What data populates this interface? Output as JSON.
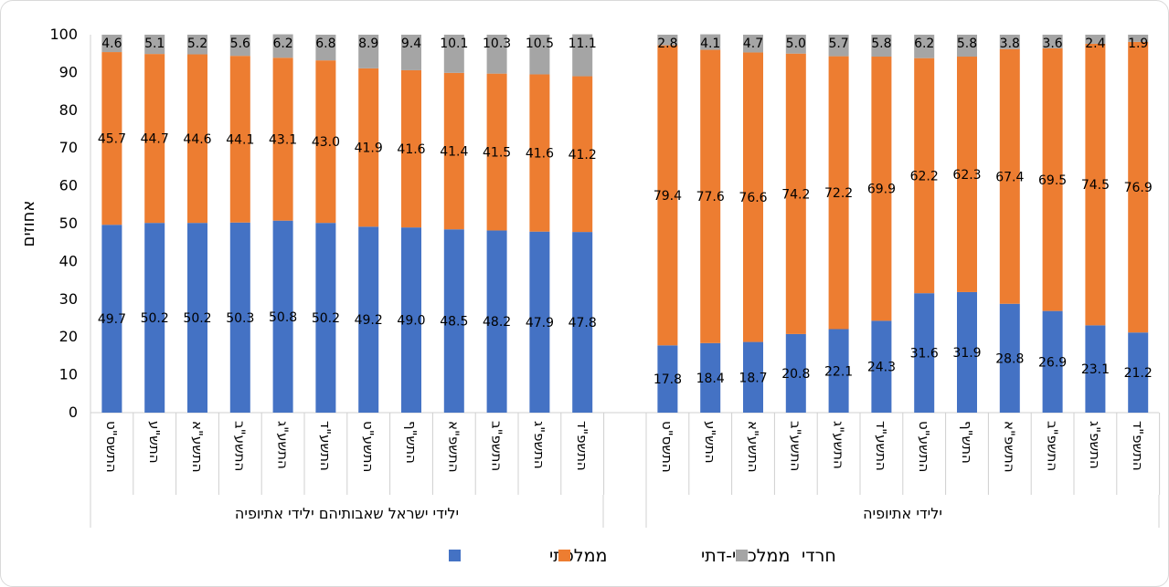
{
  "chart_data": {
    "type": "bar",
    "stacked": true,
    "ylabel": "אחוזים",
    "ylim": [
      0,
      100
    ],
    "yticks": [
      0,
      10,
      20,
      30,
      40,
      50,
      60,
      70,
      80,
      90,
      100
    ],
    "grid": false,
    "legend_position": "bottom",
    "colors": {
      "mamlachti": "#4472c4",
      "dati": "#ed7d31",
      "haredi": "#a5a5a5"
    },
    "categories": [
      "התשס\"ט",
      "התש\"ע",
      "התשע\"א",
      "התשע\"ב",
      "התשע\"ג",
      "התשע\"ד",
      "התשע\"ט",
      "התש\"ף",
      "התשפ\"א",
      "התשפ\"ב",
      "התשפ\"ג",
      "התשפ\"ד"
    ],
    "groups": [
      {
        "name": "ילידי ישראל שאבותיהם ילידי אתיופיה",
        "series": [
          {
            "key": "mamlachti",
            "values": [
              49.7,
              50.2,
              50.2,
              50.3,
              50.8,
              50.2,
              49.2,
              49.0,
              48.5,
              48.2,
              47.9,
              47.8
            ]
          },
          {
            "key": "dati",
            "values": [
              45.7,
              44.7,
              44.6,
              44.1,
              43.1,
              43.0,
              41.9,
              41.6,
              41.4,
              41.5,
              41.6,
              41.2
            ]
          },
          {
            "key": "haredi",
            "values": [
              4.6,
              5.1,
              5.2,
              5.6,
              6.2,
              6.8,
              8.9,
              9.4,
              10.1,
              10.3,
              10.5,
              11.1
            ]
          }
        ]
      },
      {
        "name": "ילידי אתיופיה",
        "series": [
          {
            "key": "mamlachti",
            "values": [
              17.8,
              18.4,
              18.7,
              20.8,
              22.1,
              24.3,
              31.6,
              31.9,
              28.8,
              26.9,
              23.1,
              21.2
            ]
          },
          {
            "key": "dati",
            "values": [
              79.4,
              77.6,
              76.6,
              74.2,
              72.2,
              69.9,
              62.2,
              62.3,
              67.4,
              69.5,
              74.5,
              76.9
            ]
          },
          {
            "key": "haredi",
            "values": [
              2.8,
              4.1,
              4.7,
              5.0,
              5.7,
              5.8,
              6.2,
              5.8,
              3.8,
              3.6,
              2.4,
              1.9
            ]
          }
        ]
      }
    ],
    "legend": [
      {
        "key": "mamlachti",
        "name": "ממלכתי"
      },
      {
        "key": "dati",
        "name": "ממלכתי-דתי"
      },
      {
        "key": "haredi",
        "name": "חרדי"
      }
    ]
  }
}
